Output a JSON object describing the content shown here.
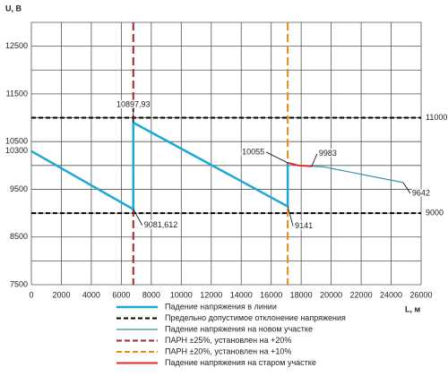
{
  "chart_data": {
    "type": "line",
    "y_label": "U, В",
    "x_label": "L, м",
    "xlim": [
      0,
      26000
    ],
    "xticks": [
      0,
      2000,
      4000,
      6000,
      8000,
      10000,
      12000,
      14000,
      16000,
      18000,
      20000,
      22000,
      24000,
      26000
    ],
    "ylim": [
      7500,
      13000
    ],
    "yticks": [
      7500,
      8500,
      9500,
      10300,
      10500,
      11500,
      12500
    ],
    "ygrid": [
      7500,
      8000,
      8500,
      9000,
      9500,
      10000,
      10500,
      11000,
      11500,
      12000,
      12500,
      13000
    ],
    "xgrid": true,
    "series": [
      {
        "name": "Падение напряжения в линии",
        "color": "#1aa9d5",
        "x": [
          0,
          6800,
          6800,
          17100,
          17100
        ],
        "values": [
          10300,
          9081.612,
          10897.93,
          9141,
          10055
        ],
        "value_labels": [
          null,
          "9081,612",
          "10897,93",
          "9141",
          "10055"
        ]
      },
      {
        "name": "Падение напряжения на новом участке",
        "color": "#3b8fa8",
        "x": [
          18700,
          19500,
          24800
        ],
        "values": [
          9983,
          9970,
          9642
        ],
        "value_labels": [
          null,
          null,
          "9642"
        ]
      },
      {
        "name": "Падение напряжения на старом участке",
        "color": "#e3262d",
        "x": [
          17100,
          17800,
          18700
        ],
        "values": [
          10055,
          10000,
          9983
        ],
        "value_labels": [
          null,
          null,
          "9983"
        ]
      }
    ],
    "limits": {
      "name": "Предельно допустимое отклонение напряжения",
      "color": "#000000",
      "values": [
        11000,
        9000
      ]
    },
    "regulators": [
      {
        "name": "ПАРН ±25%, установлен на +20%",
        "color": "#a0282d",
        "x": 6800
      },
      {
        "name": "ПАРН ±20%, установлен на +10%",
        "color": "#e88a1a",
        "x": 17100
      }
    ]
  }
}
